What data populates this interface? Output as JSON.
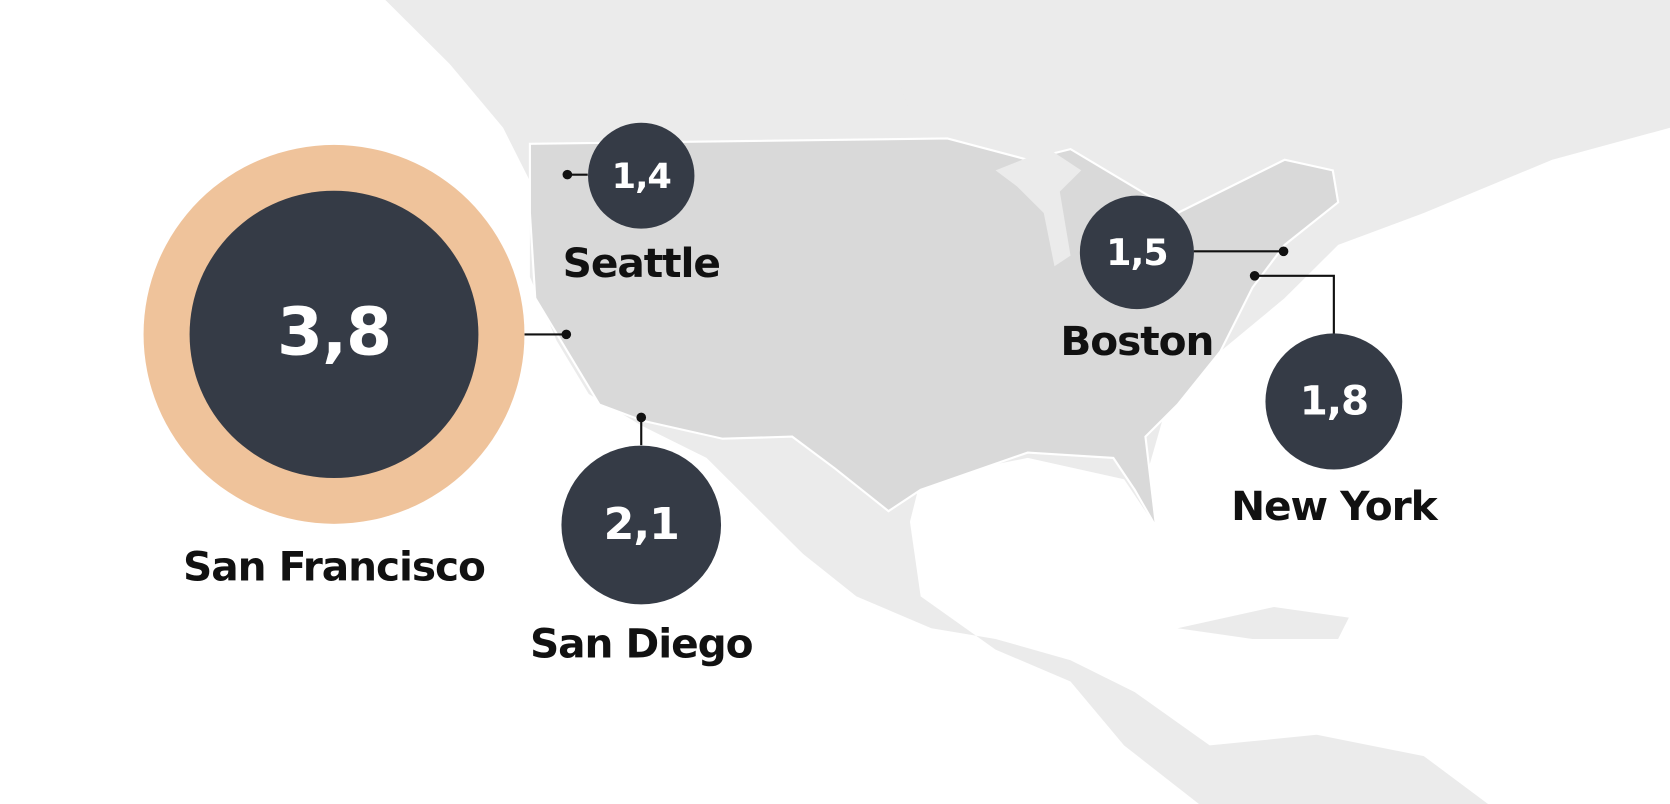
{
  "chart_data": {
    "type": "bubble-map",
    "categories": [
      "San Francisco",
      "Seattle",
      "San Diego",
      "Boston",
      "New York"
    ],
    "values": [
      3.8,
      1.4,
      2.1,
      1.5,
      1.8
    ],
    "value_labels": [
      "3,8",
      "1,4",
      "2,1",
      "1,5",
      "1,8"
    ],
    "color": "#353b46",
    "highlight_color": "#efc39b"
  }
}
